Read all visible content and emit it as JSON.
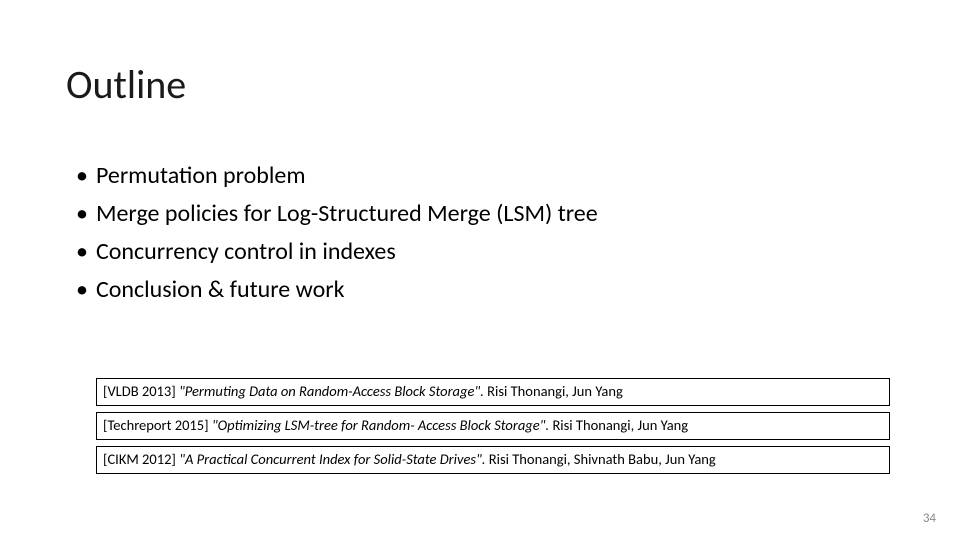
{
  "title": "Outline",
  "bullets": [
    "Permutation problem",
    "Merge policies for Log-Structured Merge (LSM) tree",
    "Concurrency control in indexes",
    "Conclusion & future work"
  ],
  "refs": [
    {
      "tag": "[VLDB 2013]",
      "title": "\"Permuting Data on Random-Access Block Storage\".",
      "authors": "Risi Thonangi, Jun Yang"
    },
    {
      "tag": "[Techreport 2015]",
      "title": "\"Optimizing LSM-tree for Random- Access Block Storage\".",
      "authors": "Risi Thonangi, Jun Yang"
    },
    {
      "tag": "[CIKM 2012]",
      "title": "\"A Practical Concurrent Index for Solid-State Drives\".",
      "authors": "Risi Thonangi, Shivnath Babu, Jun Yang"
    }
  ],
  "page_number": "34",
  "style": {
    "background_color": "#ffffff",
    "text_color": "#000000",
    "pagenum_color": "#8a8a8a",
    "title_fontsize_pt": 30,
    "bullet_fontsize_pt": 18,
    "ref_fontsize_pt": 11,
    "ref_border_color": "#000000",
    "font_family": "Calibri"
  }
}
